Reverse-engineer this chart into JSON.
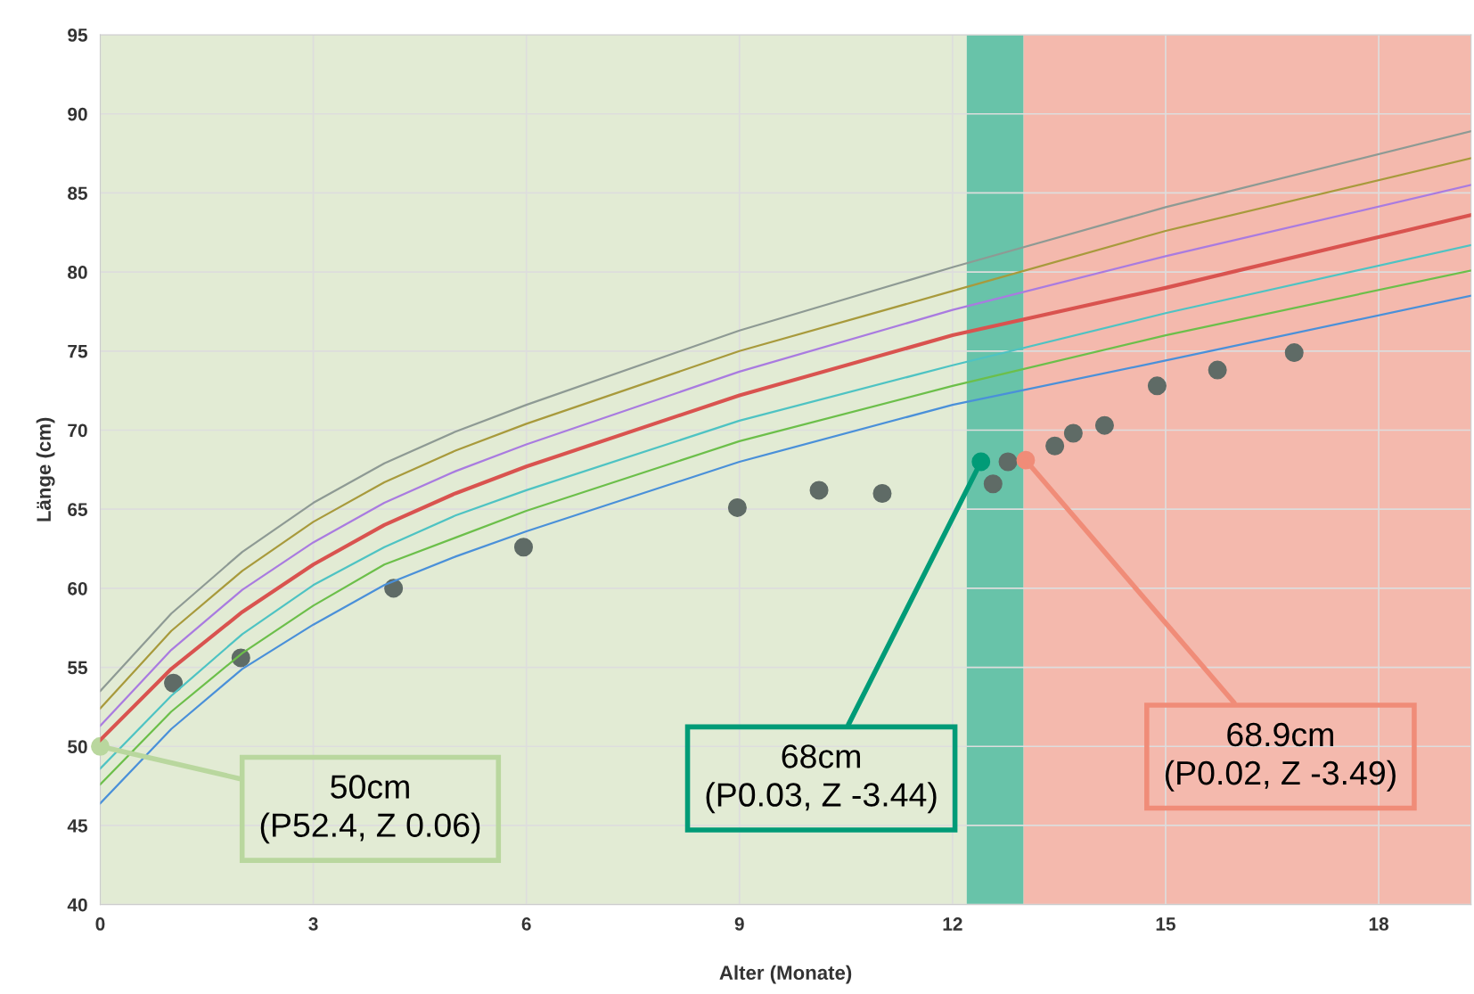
{
  "chart_data": {
    "type": "line",
    "xlabel": "Alter (Monate)",
    "ylabel": "Länge (cm)",
    "xlim": [
      0,
      19.3
    ],
    "ylim": [
      40,
      95
    ],
    "xticks": [
      0,
      3,
      6,
      9,
      12,
      15,
      18
    ],
    "yticks": [
      40,
      45,
      50,
      55,
      60,
      65,
      70,
      75,
      80,
      85,
      90,
      95
    ],
    "grid": true,
    "marker": "none",
    "line_style": "solid",
    "x": [
      0,
      1,
      2,
      3,
      4,
      5,
      6,
      9,
      12,
      15,
      19.3
    ],
    "series": [
      {
        "color": "#4a90d9",
        "values": [
          46.4,
          51.1,
          54.9,
          57.7,
          60.2,
          62.0,
          63.6,
          68.0,
          71.6,
          74.4,
          78.5
        ]
      },
      {
        "color": "#6cbf4a",
        "values": [
          47.6,
          52.2,
          55.9,
          58.9,
          61.5,
          63.2,
          64.9,
          69.3,
          72.8,
          76.0,
          80.1
        ]
      },
      {
        "color": "#4ec3c3",
        "values": [
          48.6,
          53.2,
          57.1,
          60.2,
          62.6,
          64.6,
          66.2,
          70.6,
          74.1,
          77.4,
          81.7
        ]
      },
      {
        "color": "#d9534f",
        "values": [
          50.4,
          54.9,
          58.5,
          61.5,
          64.0,
          66.0,
          67.7,
          72.2,
          76.0,
          79.0,
          83.6
        ]
      },
      {
        "color": "#a97be0",
        "values": [
          51.3,
          56.1,
          59.9,
          62.9,
          65.4,
          67.4,
          69.1,
          73.7,
          77.6,
          81.0,
          85.5
        ]
      },
      {
        "color": "#a89a3c",
        "values": [
          52.4,
          57.3,
          61.1,
          64.2,
          66.7,
          68.7,
          70.4,
          75.0,
          78.8,
          82.6,
          87.2
        ]
      },
      {
        "color": "#8e9a94",
        "values": [
          53.5,
          58.4,
          62.3,
          65.4,
          67.9,
          69.9,
          71.6,
          76.3,
          80.3,
          84.1,
          88.9
        ]
      },
      {
        "type": "scatter",
        "marker": "circle",
        "color": "#5f6b66",
        "x": [
          1.03,
          1.98,
          4.13,
          5.96,
          8.97,
          10.12,
          11.01,
          12.57,
          12.78,
          13.44,
          13.7,
          14.14,
          14.88,
          15.73,
          16.81
        ],
        "values": [
          54.0,
          55.6,
          60.0,
          62.6,
          65.1,
          66.2,
          66.0,
          66.6,
          68.0,
          69.0,
          69.8,
          70.3,
          72.8,
          73.8,
          74.9
        ]
      }
    ],
    "bands": [
      {
        "axis": "x",
        "from": 0,
        "to": 12.2,
        "color": "#dde8cc"
      },
      {
        "axis": "x",
        "from": 12.2,
        "to": 13.0,
        "color": "#4db89a"
      },
      {
        "axis": "x",
        "from": 13.0,
        "to": 19.3,
        "color": "#f2ad9f"
      }
    ],
    "annotations": [
      {
        "text": "50cm\n(P52.4, Z 0.06)",
        "x": 0,
        "y": 50
      },
      {
        "text": "68cm\n(P0.03, Z -3.44)",
        "x": 12.4,
        "y": 68.0
      },
      {
        "text": "68.9cm\n(P0.02, Z -3.49)",
        "x": 13.03,
        "y": 68.1
      }
    ]
  }
}
